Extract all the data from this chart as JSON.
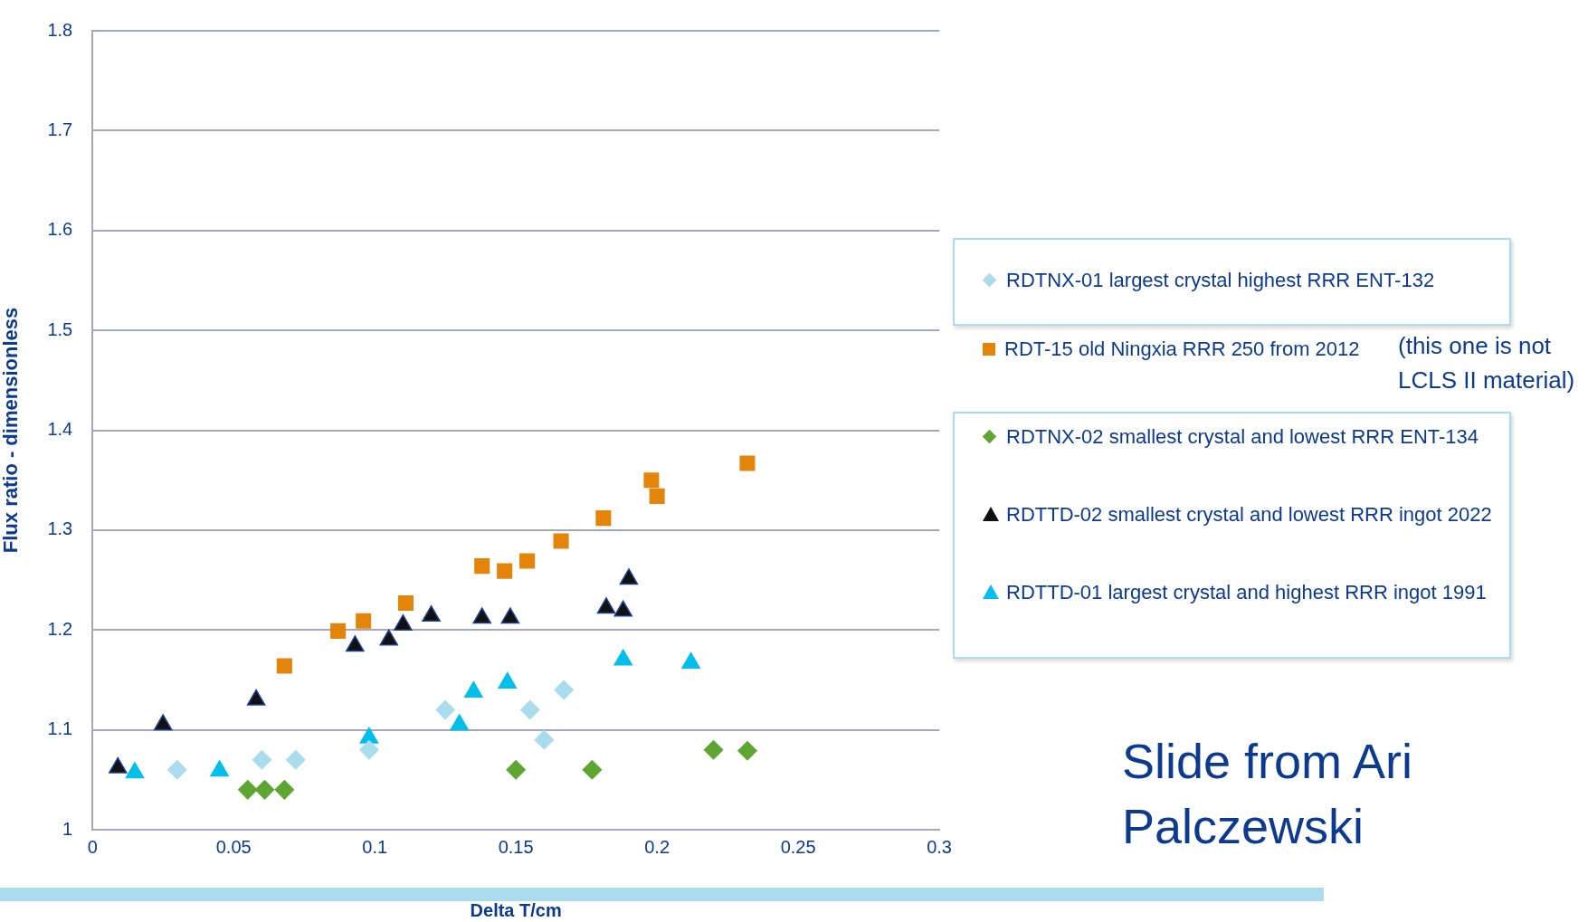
{
  "chart_data": {
    "type": "scatter",
    "xlabel": "Delta T/cm",
    "ylabel": "Flux ratio - dimensionless",
    "xlim": [
      0,
      0.3
    ],
    "xticks": [
      0,
      0.05,
      0.1,
      0.15,
      0.2,
      0.25,
      0.3
    ],
    "ylim": [
      1,
      1.8
    ],
    "yticks": [
      1,
      1.1,
      1.2,
      1.3,
      1.4,
      1.5,
      1.6,
      1.7,
      1.8
    ],
    "grid": "y",
    "legend": "right",
    "series": [
      {
        "name": "RDTNX-01 largest crystal highest RRR ENT-132",
        "color": "#a9dcec",
        "marker": "diamond",
        "x": [
          0.03,
          0.06,
          0.072,
          0.098,
          0.125,
          0.155,
          0.16,
          0.167
        ],
        "values": [
          1.06,
          1.07,
          1.07,
          1.08,
          1.12,
          1.12,
          1.09,
          1.14
        ]
      },
      {
        "name": "RDT-15 old Ningxia RRR 250 from 2012",
        "color": "#e3850b",
        "marker": "square",
        "x": [
          0.068,
          0.087,
          0.096,
          0.111,
          0.138,
          0.146,
          0.154,
          0.166,
          0.181,
          0.198,
          0.2,
          0.232
        ],
        "values": [
          1.164,
          1.199,
          1.209,
          1.227,
          1.264,
          1.259,
          1.269,
          1.289,
          1.312,
          1.35,
          1.334,
          1.367
        ]
      },
      {
        "name": "RDTNX-02 smallest crystal and lowest RRR ENT-134",
        "color": "#5ea632",
        "marker": "diamond",
        "x": [
          0.055,
          0.061,
          0.068,
          0.15,
          0.177,
          0.22,
          0.232
        ],
        "values": [
          1.04,
          1.04,
          1.04,
          1.06,
          1.06,
          1.08,
          1.079
        ]
      },
      {
        "name": "RDTTD-02 smallest crystal and lowest RRR ingot 2022",
        "color": "#111111",
        "marker": "triangle",
        "x": [
          0.009,
          0.025,
          0.058,
          0.093,
          0.105,
          0.11,
          0.12,
          0.138,
          0.148,
          0.182,
          0.188,
          0.19
        ],
        "values": [
          1.062,
          1.105,
          1.13,
          1.184,
          1.19,
          1.205,
          1.214,
          1.212,
          1.212,
          1.222,
          1.219,
          1.251
        ]
      },
      {
        "name": "RDTTD-01 largest crystal and highest RRR ingot 1991",
        "color": "#00bfea",
        "marker": "triangle",
        "x": [
          0.015,
          0.045,
          0.098,
          0.13,
          0.135,
          0.147,
          0.188,
          0.212
        ],
        "values": [
          1.057,
          1.059,
          1.092,
          1.105,
          1.138,
          1.147,
          1.17,
          1.167
        ]
      }
    ],
    "annotations": [
      "(this one is not LCLS II material)",
      "Slide from Ari Palczewski"
    ]
  }
}
